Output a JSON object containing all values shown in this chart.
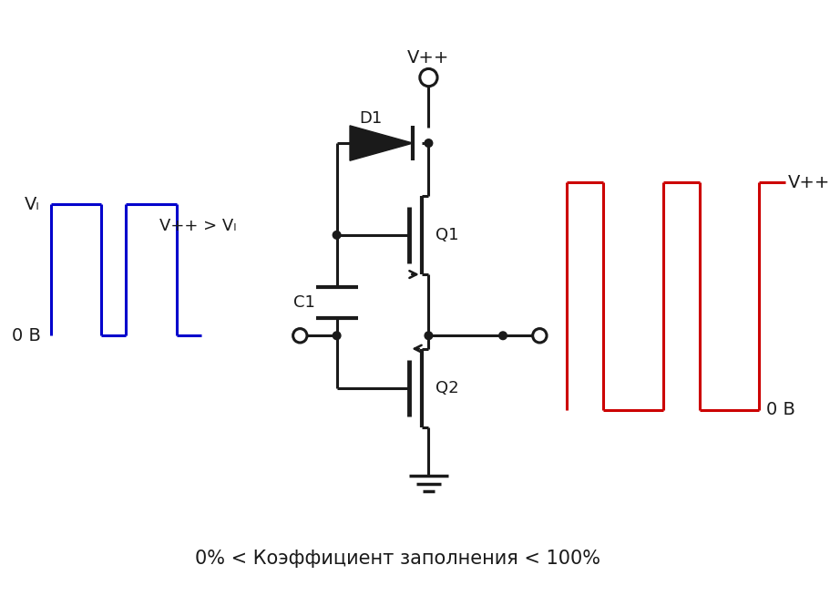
{
  "title": "0% < Коэффициент заполнения < 100%",
  "bg_color": "#ffffff",
  "line_color": "#1a1a1a",
  "blue_color": "#0000cc",
  "red_color": "#cc0000",
  "label_vpp_top": "V++",
  "label_d1": "D1",
  "label_q1": "Q1",
  "label_q2": "Q2",
  "label_c1": "C1",
  "label_vl": "Vₗ",
  "label_vpp_gt_vl": "V++ > Vₗ",
  "label_0b_left": "0 B",
  "label_vpp_right": "V++",
  "label_0b_right": "0 B"
}
